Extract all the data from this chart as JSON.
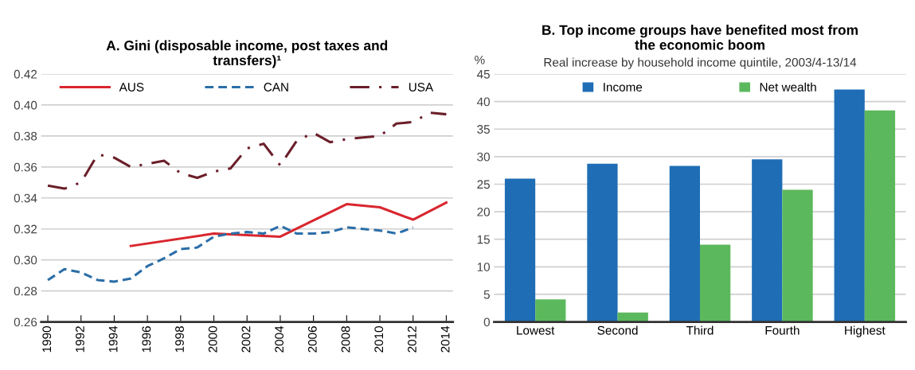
{
  "chart_data": [
    {
      "type": "line",
      "title": "A. Gini (disposable income, post taxes and\ntransfers)¹",
      "xlim": [
        1989.6,
        2014.4
      ],
      "xticks": [
        1990,
        1992,
        1994,
        1996,
        1998,
        2000,
        2002,
        2004,
        2006,
        2008,
        2010,
        2012,
        2014
      ],
      "ylim": [
        0.26,
        0.42
      ],
      "yticks": [
        {
          "value": 0.26,
          "label": "0.26"
        },
        {
          "value": 0.28,
          "label": "0.28"
        },
        {
          "value": 0.3,
          "label": "0.30"
        },
        {
          "value": 0.32,
          "label": "0.32"
        },
        {
          "value": 0.34,
          "label": "0.34"
        },
        {
          "value": 0.36,
          "label": "0.36"
        },
        {
          "value": 0.38,
          "label": "0.38"
        },
        {
          "value": 0.4,
          "label": "0.40"
        },
        {
          "value": 0.42,
          "label": "0.42"
        }
      ],
      "grid": "y",
      "legend": "top",
      "marker": "none",
      "series": [
        {
          "name": "AUS",
          "color": "#d9262e",
          "line_style": "solid",
          "x": [
            1995,
            2000,
            2002,
            2004,
            2008,
            2010,
            2012,
            2014
          ],
          "values": [
            0.309,
            0.317,
            0.316,
            0.315,
            0.336,
            0.334,
            0.326,
            0.337
          ]
        },
        {
          "name": "CAN",
          "color": "#2b6ea8",
          "line_style": "dashed",
          "x": [
            1990,
            1991,
            1992,
            1993,
            1994,
            1995,
            1996,
            1997,
            1998,
            1999,
            2000,
            2001,
            2002,
            2003,
            2004,
            2005,
            2006,
            2007,
            2008,
            2009,
            2010,
            2011,
            2012
          ],
          "values": [
            0.287,
            0.294,
            0.292,
            0.287,
            0.286,
            0.288,
            0.296,
            0.301,
            0.307,
            0.308,
            0.315,
            0.317,
            0.318,
            0.317,
            0.322,
            0.317,
            0.317,
            0.318,
            0.321,
            0.32,
            0.319,
            0.317,
            0.321
          ]
        },
        {
          "name": "USA",
          "color": "#6b1f2a",
          "line_style": "dashdot",
          "x": [
            1990,
            1991,
            1992,
            1993,
            1994,
            1995,
            1996,
            1997,
            1998,
            1999,
            2000,
            2001,
            2002,
            2003,
            2004,
            2005,
            2006,
            2007,
            2008,
            2009,
            2010,
            2011,
            2012,
            2013,
            2014
          ],
          "values": [
            0.348,
            0.346,
            0.35,
            0.368,
            0.366,
            0.36,
            0.362,
            0.364,
            0.356,
            0.353,
            0.357,
            0.359,
            0.372,
            0.375,
            0.361,
            0.377,
            0.382,
            0.376,
            0.378,
            0.379,
            0.38,
            0.388,
            0.389,
            0.395,
            0.394
          ]
        }
      ]
    },
    {
      "type": "bar",
      "title": "B. Top income groups have benefited most from\nthe economic boom",
      "subtitle": "Real increase by household income quintile, 2003/4-13/14",
      "ylabel": "%",
      "categories": [
        "Lowest",
        "Second",
        "Third",
        "Fourth",
        "Highest"
      ],
      "ylim": [
        0,
        45
      ],
      "yticks": [
        0,
        5,
        10,
        15,
        20,
        25,
        30,
        35,
        40,
        45
      ],
      "grid": "y",
      "legend": "top",
      "series": [
        {
          "name": "Income",
          "color": "#1f6db5",
          "values": [
            26.0,
            28.7,
            28.3,
            29.5,
            42.2
          ]
        },
        {
          "name": "Net wealth",
          "color": "#5cb85c",
          "values": [
            4.1,
            1.7,
            14.0,
            24.0,
            38.4
          ]
        }
      ]
    }
  ]
}
